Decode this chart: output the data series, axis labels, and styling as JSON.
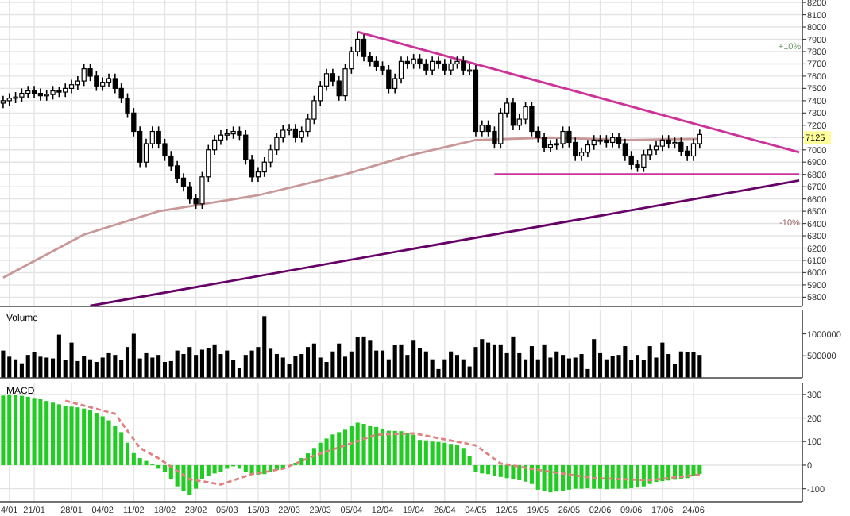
{
  "chart_data": [
    {
      "type": "candlestick",
      "tick_labels": "y",
      "grid": true,
      "categories": [
        null,
        null,
        null,
        null,
        null,
        null,
        null,
        null,
        null,
        null,
        null,
        null,
        null,
        null,
        null,
        null,
        null,
        null,
        null,
        null,
        null,
        null,
        null,
        null,
        null,
        null,
        null,
        null,
        null,
        null,
        null,
        null,
        null,
        null,
        null,
        null,
        null,
        null,
        null,
        null,
        null,
        null,
        null,
        null,
        null,
        null,
        null,
        null,
        null,
        null,
        null,
        null,
        null,
        null,
        null,
        null,
        null,
        null,
        null,
        null,
        null,
        null,
        null,
        null,
        null,
        null,
        null,
        null,
        null,
        null,
        null,
        null,
        null,
        null,
        null,
        null,
        null,
        null,
        null,
        null,
        null,
        null,
        null,
        null,
        null,
        null,
        null,
        null,
        null,
        null,
        null,
        null,
        null,
        null,
        null,
        null,
        null,
        null,
        null,
        null,
        null,
        null,
        null,
        null,
        null,
        null,
        null,
        null,
        null,
        null,
        null,
        null,
        null,
        null,
        null,
        null,
        null,
        null,
        null,
        null,
        null,
        null,
        null,
        null,
        null,
        null,
        null,
        null,
        null
      ],
      "ylim": [
        5725,
        8220
      ],
      "yticks": [
        5800,
        5900,
        6000,
        6100,
        6200,
        6300,
        6400,
        6500,
        6600,
        6700,
        6800,
        6900,
        7000,
        {
          "value": 7100,
          "label": null
        },
        7200,
        7300,
        7400,
        7500,
        7600,
        7700,
        7800,
        7900,
        8000,
        8100,
        8200
      ],
      "ohlc": [
        [
          7380,
          7440,
          7340,
          7400
        ],
        [
          7400,
          7460,
          7360,
          7420
        ],
        [
          7420,
          7470,
          7380,
          7430
        ],
        [
          7430,
          7500,
          7390,
          7460
        ],
        [
          7460,
          7520,
          7420,
          7480
        ],
        [
          7480,
          7520,
          7420,
          7460
        ],
        [
          7460,
          7500,
          7400,
          7440
        ],
        [
          7440,
          7490,
          7400,
          7450
        ],
        [
          7450,
          7520,
          7410,
          7480
        ],
        [
          7480,
          7510,
          7430,
          7470
        ],
        [
          7470,
          7540,
          7430,
          7500
        ],
        [
          7500,
          7570,
          7460,
          7530
        ],
        [
          7530,
          7600,
          7490,
          7560
        ],
        [
          7560,
          7700,
          7520,
          7660
        ],
        [
          7660,
          7700,
          7560,
          7600
        ],
        [
          7600,
          7640,
          7480,
          7520
        ],
        [
          7520,
          7590,
          7480,
          7550
        ],
        [
          7550,
          7620,
          7510,
          7580
        ],
        [
          7580,
          7620,
          7460,
          7500
        ],
        [
          7500,
          7540,
          7380,
          7420
        ],
        [
          7420,
          7460,
          7260,
          7300
        ],
        [
          7300,
          7340,
          7110,
          7150
        ],
        [
          7150,
          7190,
          6860,
          6900
        ],
        [
          6900,
          7090,
          6860,
          7050
        ],
        [
          7050,
          7190,
          7010,
          7150
        ],
        [
          7150,
          7190,
          7010,
          7050
        ],
        [
          7050,
          7090,
          6910,
          6950
        ],
        [
          6950,
          6990,
          6830,
          6870
        ],
        [
          6870,
          6910,
          6730,
          6770
        ],
        [
          6770,
          6810,
          6660,
          6700
        ],
        [
          6700,
          6740,
          6560,
          6600
        ],
        [
          6600,
          6640,
          6520,
          6560
        ],
        [
          6560,
          6820,
          6520,
          6780
        ],
        [
          6780,
          7040,
          6740,
          7000
        ],
        [
          7000,
          7120,
          6960,
          7080
        ],
        [
          7080,
          7160,
          7040,
          7120
        ],
        [
          7120,
          7170,
          7080,
          7130
        ],
        [
          7130,
          7190,
          7090,
          7150
        ],
        [
          7150,
          7190,
          7080,
          7120
        ],
        [
          7120,
          7160,
          6880,
          6920
        ],
        [
          6920,
          6960,
          6740,
          6780
        ],
        [
          6780,
          6860,
          6740,
          6820
        ],
        [
          6820,
          6940,
          6780,
          6900
        ],
        [
          6900,
          7040,
          6860,
          7000
        ],
        [
          7000,
          7140,
          6960,
          7100
        ],
        [
          7100,
          7200,
          7060,
          7160
        ],
        [
          7160,
          7210,
          7120,
          7170
        ],
        [
          7170,
          7210,
          7060,
          7100
        ],
        [
          7100,
          7190,
          7060,
          7150
        ],
        [
          7150,
          7290,
          7110,
          7250
        ],
        [
          7250,
          7440,
          7210,
          7400
        ],
        [
          7400,
          7560,
          7360,
          7520
        ],
        [
          7520,
          7660,
          7480,
          7620
        ],
        [
          7620,
          7660,
          7520,
          7560
        ],
        [
          7560,
          7600,
          7400,
          7440
        ],
        [
          7440,
          7700,
          7400,
          7660
        ],
        [
          7660,
          7840,
          7620,
          7800
        ],
        [
          7800,
          7960,
          7760,
          7900
        ],
        [
          7900,
          7940,
          7720,
          7760
        ],
        [
          7760,
          7800,
          7680,
          7720
        ],
        [
          7720,
          7760,
          7640,
          7680
        ],
        [
          7680,
          7720,
          7610,
          7650
        ],
        [
          7650,
          7690,
          7460,
          7500
        ],
        [
          7500,
          7620,
          7460,
          7580
        ],
        [
          7580,
          7760,
          7540,
          7720
        ],
        [
          7720,
          7760,
          7660,
          7700
        ],
        [
          7700,
          7780,
          7660,
          7740
        ],
        [
          7740,
          7780,
          7660,
          7700
        ],
        [
          7700,
          7740,
          7610,
          7650
        ],
        [
          7650,
          7760,
          7610,
          7720
        ],
        [
          7720,
          7760,
          7660,
          7700
        ],
        [
          7700,
          7740,
          7610,
          7650
        ],
        [
          7650,
          7740,
          7610,
          7700
        ],
        [
          7700,
          7760,
          7660,
          7720
        ],
        [
          7720,
          7760,
          7610,
          7650
        ],
        [
          7650,
          7700,
          7610,
          7650
        ],
        [
          7650,
          7690,
          7110,
          7150
        ],
        [
          7150,
          7240,
          7110,
          7200
        ],
        [
          7200,
          7240,
          7110,
          7150
        ],
        [
          7150,
          7190,
          7010,
          7050
        ],
        [
          7050,
          7340,
          7010,
          7300
        ],
        [
          7300,
          7420,
          7260,
          7380
        ],
        [
          7380,
          7420,
          7160,
          7200
        ],
        [
          7200,
          7290,
          7160,
          7250
        ],
        [
          7250,
          7390,
          7210,
          7350
        ],
        [
          7350,
          7390,
          7110,
          7150
        ],
        [
          7150,
          7190,
          7060,
          7100
        ],
        [
          7100,
          7140,
          6980,
          7020
        ],
        [
          7020,
          7080,
          6980,
          7040
        ],
        [
          7040,
          7090,
          7000,
          7050
        ],
        [
          7050,
          7190,
          7010,
          7150
        ],
        [
          7150,
          7190,
          7020,
          7060
        ],
        [
          7060,
          7100,
          6910,
          6950
        ],
        [
          6950,
          7020,
          6910,
          6980
        ],
        [
          6980,
          7080,
          6940,
          7040
        ],
        [
          7040,
          7120,
          7000,
          7080
        ],
        [
          7080,
          7120,
          7040,
          7080
        ],
        [
          7080,
          7120,
          7020,
          7060
        ],
        [
          7060,
          7140,
          7020,
          7100
        ],
        [
          7100,
          7140,
          7010,
          7050
        ],
        [
          7050,
          7090,
          6910,
          6950
        ],
        [
          6950,
          6990,
          6840,
          6880
        ],
        [
          6880,
          6920,
          6820,
          6860
        ],
        [
          6860,
          7000,
          6820,
          6960
        ],
        [
          6960,
          7040,
          6920,
          7000
        ],
        [
          7000,
          7070,
          6960,
          7030
        ],
        [
          7030,
          7120,
          6990,
          7080
        ],
        [
          7080,
          7120,
          7010,
          7050
        ],
        [
          7050,
          7100,
          7010,
          7060
        ],
        [
          7060,
          7100,
          6950,
          6990
        ],
        [
          6990,
          7030,
          6910,
          6950
        ],
        [
          6950,
          7090,
          6910,
          7050
        ],
        [
          7050,
          7165,
          7010,
          7125
        ],
        null,
        null,
        null,
        null,
        null,
        null,
        null,
        null,
        null,
        null,
        null,
        null,
        null,
        null,
        null,
        null
      ],
      "series": [
        {
          "type": "line",
          "color": "#c89898",
          "values": [
            5960,
            null,
            null,
            null,
            null,
            null,
            null,
            null,
            null,
            null,
            null,
            null,
            null,
            6310,
            null,
            null,
            null,
            null,
            null,
            null,
            null,
            null,
            null,
            null,
            null,
            6500,
            null,
            null,
            null,
            null,
            6540,
            null,
            null,
            null,
            null,
            null,
            null,
            null,
            null,
            null,
            null,
            6630,
            null,
            null,
            null,
            null,
            null,
            null,
            null,
            null,
            null,
            null,
            null,
            null,
            null,
            6800,
            null,
            null,
            null,
            null,
            null,
            null,
            null,
            null,
            null,
            6950,
            null,
            null,
            null,
            null,
            null,
            null,
            null,
            null,
            null,
            null,
            7080,
            null,
            null,
            null,
            null,
            null,
            null,
            null,
            null,
            null,
            null,
            null,
            7100,
            null,
            null,
            null,
            null,
            null,
            null,
            null,
            null,
            null,
            null,
            null,
            7080,
            null,
            null,
            null,
            null,
            null,
            null,
            null,
            null,
            null,
            null,
            null,
            7090,
            null,
            null,
            null,
            null,
            null,
            null,
            null,
            null,
            null,
            null,
            null,
            null,
            null,
            null,
            null,
            null
          ]
        },
        {
          "type": "line",
          "color": "#cc3399",
          "values": [
            null,
            null,
            null,
            null,
            null,
            null,
            null,
            null,
            null,
            null,
            null,
            null,
            null,
            null,
            null,
            null,
            null,
            null,
            null,
            null,
            null,
            null,
            null,
            null,
            null,
            null,
            null,
            null,
            null,
            null,
            null,
            null,
            null,
            null,
            null,
            null,
            null,
            null,
            null,
            null,
            null,
            null,
            null,
            null,
            null,
            null,
            null,
            null,
            null,
            null,
            null,
            null,
            null,
            null,
            null,
            null,
            null,
            7960,
            null,
            null,
            null,
            null,
            null,
            null,
            null,
            null,
            null,
            null,
            null,
            null,
            null,
            null,
            null,
            null,
            null,
            null,
            null,
            null,
            null,
            null,
            null,
            null,
            null,
            null,
            null,
            null,
            null,
            null,
            null,
            null,
            null,
            null,
            null,
            null,
            null,
            null,
            null,
            null,
            null,
            null,
            null,
            null,
            null,
            null,
            null,
            null,
            null,
            null,
            null,
            null,
            null,
            null,
            null,
            null,
            null,
            null,
            null,
            null,
            null,
            null,
            null,
            null,
            null,
            null,
            null,
            null,
            null,
            null,
            6980
          ]
        },
        {
          "type": "line",
          "color": "#cc3399",
          "values": [
            null,
            null,
            null,
            null,
            null,
            null,
            null,
            null,
            null,
            null,
            null,
            null,
            null,
            null,
            null,
            null,
            null,
            null,
            null,
            null,
            null,
            null,
            null,
            null,
            null,
            null,
            null,
            null,
            null,
            null,
            null,
            null,
            null,
            null,
            null,
            null,
            null,
            null,
            null,
            null,
            null,
            null,
            null,
            null,
            null,
            null,
            null,
            null,
            null,
            null,
            null,
            null,
            null,
            null,
            null,
            null,
            null,
            null,
            null,
            null,
            null,
            null,
            null,
            null,
            null,
            null,
            null,
            null,
            null,
            null,
            null,
            null,
            null,
            null,
            null,
            null,
            null,
            null,
            null,
            6800,
            null,
            null,
            null,
            null,
            null,
            null,
            null,
            null,
            null,
            null,
            null,
            null,
            null,
            null,
            null,
            null,
            null,
            null,
            null,
            null,
            null,
            null,
            null,
            null,
            null,
            null,
            null,
            null,
            null,
            null,
            null,
            null,
            null,
            null,
            null,
            null,
            null,
            null,
            null,
            null,
            null,
            null,
            null,
            null,
            null,
            null,
            null,
            null,
            6800
          ]
        },
        {
          "type": "line",
          "color": "#660066",
          "values": [
            null,
            null,
            null,
            null,
            null,
            null,
            null,
            null,
            null,
            null,
            null,
            null,
            null,
            null,
            5730,
            null,
            null,
            null,
            null,
            null,
            null,
            null,
            null,
            null,
            null,
            null,
            null,
            null,
            null,
            null,
            null,
            null,
            null,
            null,
            null,
            null,
            null,
            null,
            null,
            null,
            null,
            null,
            null,
            null,
            null,
            null,
            null,
            null,
            null,
            null,
            null,
            null,
            null,
            null,
            null,
            null,
            null,
            null,
            null,
            null,
            null,
            null,
            null,
            null,
            null,
            null,
            null,
            null,
            null,
            null,
            null,
            null,
            null,
            null,
            null,
            null,
            null,
            null,
            null,
            null,
            null,
            null,
            null,
            null,
            null,
            null,
            null,
            null,
            null,
            null,
            null,
            null,
            null,
            null,
            null,
            null,
            null,
            null,
            null,
            null,
            null,
            null,
            null,
            null,
            null,
            null,
            null,
            null,
            null,
            null,
            null,
            null,
            null,
            null,
            null,
            null,
            null,
            null,
            null,
            null,
            null,
            null,
            null,
            null,
            null,
            null,
            null,
            null,
            6750
          ]
        }
      ],
      "annotations": [
        "+10%",
        "-10%",
        "7125"
      ]
    },
    {
      "type": "bar",
      "title": "Volume",
      "tick_labels": "y",
      "grid": "x",
      "categories": [
        null,
        null,
        null,
        null,
        null,
        null,
        null,
        null,
        null,
        null,
        null,
        null,
        null,
        null,
        null,
        null,
        null,
        null,
        null,
        null,
        null,
        null,
        null,
        null,
        null,
        null,
        null,
        null,
        null,
        null,
        null,
        null,
        null,
        null,
        null,
        null,
        null,
        null,
        null,
        null,
        null,
        null,
        null,
        null,
        null,
        null,
        null,
        null,
        null,
        null,
        null,
        null,
        null,
        null,
        null,
        null,
        null,
        null,
        null,
        null,
        null,
        null,
        null,
        null,
        null,
        null,
        null,
        null,
        null,
        null,
        null,
        null,
        null,
        null,
        null,
        null,
        null,
        null,
        null,
        null,
        null,
        null,
        null,
        null,
        null,
        null,
        null,
        null,
        null,
        null,
        null,
        null,
        null,
        null,
        null,
        null,
        null,
        null,
        null,
        null,
        null,
        null,
        null,
        null,
        null,
        null,
        null,
        null,
        null,
        null,
        null,
        null,
        null,
        null,
        null,
        null,
        null,
        null,
        null,
        null,
        null,
        null,
        null,
        null,
        null,
        null,
        null,
        null,
        null
      ],
      "ylim": [
        0,
        1550000
      ],
      "yticks": [
        500000,
        1000000
      ],
      "series": [
        {
          "color": "#000000",
          "values": [
            620000,
            480000,
            420000,
            330000,
            520000,
            580000,
            480000,
            460000,
            440000,
            980000,
            400000,
            800000,
            380000,
            500000,
            420000,
            360000,
            460000,
            560000,
            520000,
            400000,
            700000,
            1000000,
            440000,
            560000,
            460000,
            520000,
            360000,
            380000,
            620000,
            540000,
            700000,
            520000,
            640000,
            680000,
            760000,
            540000,
            620000,
            400000,
            220000,
            520000,
            620000,
            700000,
            1400000,
            660000,
            540000,
            460000,
            320000,
            500000,
            540000,
            700000,
            780000,
            460000,
            360000,
            600000,
            780000,
            480000,
            600000,
            920000,
            940000,
            860000,
            620000,
            620000,
            420000,
            740000,
            760000,
            520000,
            860000,
            680000,
            600000,
            420000,
            200000,
            420000,
            600000,
            520000,
            420000,
            260000,
            700000,
            880000,
            800000,
            760000,
            760000,
            560000,
            940000,
            560000,
            420000,
            720000,
            420000,
            760000,
            460000,
            600000,
            520000,
            440000,
            460000,
            540000,
            200000,
            880000,
            560000,
            420000,
            500000,
            520000,
            720000,
            400000,
            520000,
            400000,
            720000,
            460000,
            800000,
            540000,
            320000,
            600000,
            580000,
            580000,
            520000,
            null,
            null,
            null,
            null,
            null,
            null,
            null,
            null,
            null,
            null,
            null,
            null,
            null,
            null,
            null,
            null
          ]
        }
      ]
    },
    {
      "type": "bar",
      "title": "MACD",
      "grid": true,
      "categories": [
        null,
        "4/01",
        null,
        null,
        null,
        "21/01",
        null,
        null,
        null,
        null,
        null,
        "28/01",
        null,
        null,
        null,
        null,
        "04/02",
        null,
        null,
        null,
        null,
        "11/02",
        null,
        null,
        null,
        null,
        "18/02",
        null,
        null,
        null,
        null,
        "28/02",
        null,
        null,
        null,
        null,
        "05/03",
        null,
        null,
        null,
        null,
        "15/03",
        null,
        null,
        null,
        null,
        "22/03",
        null,
        null,
        null,
        null,
        "29/03",
        null,
        null,
        null,
        null,
        "05/04",
        null,
        null,
        null,
        null,
        "12/04",
        null,
        null,
        null,
        null,
        "19/04",
        null,
        null,
        null,
        null,
        "26/04",
        null,
        null,
        null,
        null,
        "04/05",
        null,
        null,
        null,
        null,
        "12/05",
        null,
        null,
        null,
        null,
        "19/05",
        null,
        null,
        null,
        null,
        "26/05",
        null,
        null,
        null,
        null,
        "02/06",
        null,
        null,
        null,
        null,
        "09/06",
        null,
        null,
        null,
        null,
        "17/06",
        null,
        null,
        null,
        null,
        "24/06",
        null,
        null,
        null,
        null,
        null,
        null,
        null,
        null,
        null,
        null,
        null,
        null,
        null,
        null,
        null,
        null,
        null
      ],
      "ylim": [
        -155,
        350
      ],
      "yticks": [
        -100,
        0,
        100,
        200,
        300
      ],
      "series": [
        {
          "type": "bar",
          "color": "#22cc22",
          "values": [
            295,
            300,
            298,
            294,
            290,
            285,
            280,
            272,
            265,
            258,
            252,
            248,
            245,
            240,
            232,
            222,
            207,
            190,
            165,
            140,
            95,
            51,
            30,
            18,
            5,
            -15,
            -30,
            -60,
            -90,
            -110,
            -127,
            -100,
            -60,
            -45,
            -35,
            -27,
            -15,
            -5,
            -15,
            -30,
            -38,
            -40,
            -38,
            -30,
            -20,
            -15,
            0,
            10,
            30,
            50,
            73,
            95,
            113,
            130,
            140,
            150,
            165,
            180,
            175,
            168,
            162,
            155,
            146,
            145,
            144,
            135,
            129,
            107,
            105,
            100,
            98,
            95,
            90,
            85,
            73,
            40,
            -27,
            -35,
            -38,
            -45,
            -50,
            -55,
            -60,
            -64,
            -70,
            -80,
            -104,
            -110,
            -115,
            -112,
            -108,
            -104,
            -100,
            -100,
            -98,
            -100,
            -100,
            -102,
            -100,
            -100,
            -100,
            -98,
            -95,
            -90,
            -80,
            -71,
            -68,
            -65,
            -62,
            -60,
            -55,
            -45,
            -38,
            null,
            null,
            null,
            null,
            null,
            null,
            null,
            null,
            null,
            null,
            null,
            null,
            null,
            null,
            null,
            null
          ]
        },
        {
          "type": "line",
          "color": "#e08080",
          "line_style": "dashed",
          "values": [
            null,
            null,
            null,
            null,
            null,
            null,
            null,
            null,
            null,
            null,
            273,
            null,
            null,
            null,
            null,
            null,
            null,
            null,
            218,
            null,
            null,
            null,
            73,
            null,
            null,
            29,
            null,
            null,
            null,
            null,
            -60,
            null,
            null,
            null,
            null,
            -82,
            null,
            null,
            null,
            null,
            -38,
            null,
            null,
            null,
            null,
            -15,
            null,
            null,
            null,
            null,
            40,
            null,
            null,
            null,
            null,
            84,
            null,
            null,
            null,
            null,
            129,
            null,
            null,
            null,
            null,
            null,
            135,
            null,
            null,
            null,
            null,
            null,
            null,
            null,
            null,
            null,
            84,
            null,
            null,
            null,
            7,
            null,
            null,
            null,
            null,
            null,
            -20,
            null,
            null,
            null,
            null,
            null,
            null,
            null,
            null,
            -55,
            null,
            null,
            null,
            null,
            null,
            null,
            null,
            null,
            -64,
            null,
            null,
            null,
            null,
            null,
            null,
            null,
            -40,
            null,
            null,
            null,
            null,
            null,
            null,
            null,
            null,
            null,
            null,
            null,
            null,
            null,
            null,
            null,
            null
          ]
        }
      ]
    }
  ]
}
